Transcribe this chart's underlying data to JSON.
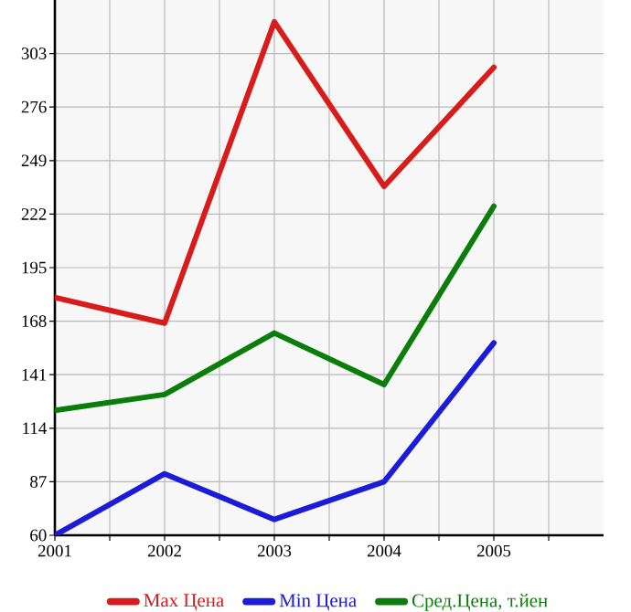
{
  "chart_data": {
    "type": "line",
    "x": [
      2001,
      2002,
      2003,
      2004,
      2005
    ],
    "series": [
      {
        "name": "Max Цена",
        "color": "#d81c1c",
        "values": [
          180,
          167,
          319,
          236,
          296
        ]
      },
      {
        "name": "Min Цена",
        "color": "#1c1cd8",
        "values": [
          60,
          91,
          68,
          87,
          157
        ]
      },
      {
        "name": "Сред.Цена, т.йен",
        "color": "#0a7d0a",
        "values": [
          123,
          131,
          162,
          136,
          226
        ]
      }
    ],
    "xlim": [
      2001,
      2006
    ],
    "xticks": [
      2001,
      {
        "value": 2001.5,
        "label": null
      },
      2002,
      {
        "value": 2002.5,
        "label": null
      },
      2003,
      {
        "value": 2003.5,
        "label": null
      },
      2004,
      {
        "value": 2004.5,
        "label": null
      },
      2005,
      {
        "value": 2005.5,
        "label": null
      }
    ],
    "ylim": [
      60,
      330
    ],
    "yticks": [
      60,
      87,
      114,
      141,
      168,
      195,
      222,
      249,
      276,
      303
    ],
    "grid": true,
    "legend": "bottom",
    "marker": "none",
    "line_style": "solid"
  }
}
